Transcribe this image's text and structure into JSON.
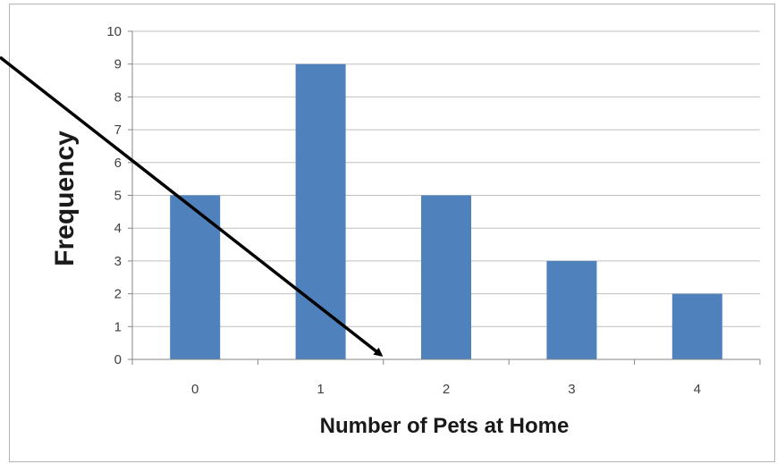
{
  "chart_data": {
    "type": "bar",
    "categories": [
      "0",
      "1",
      "2",
      "3",
      "4"
    ],
    "values": [
      5,
      9,
      5,
      3,
      2
    ],
    "title": "",
    "xlabel": "Number of Pets at Home",
    "ylabel": "Frequency",
    "ylim": [
      0,
      10
    ],
    "yticks": [
      "0",
      "1",
      "2",
      "3",
      "4",
      "5",
      "6",
      "7",
      "8",
      "9",
      "10"
    ],
    "grid": true,
    "bar_color": "#4f81bd",
    "annotation": {
      "type": "arrow",
      "color": "#000000"
    }
  }
}
